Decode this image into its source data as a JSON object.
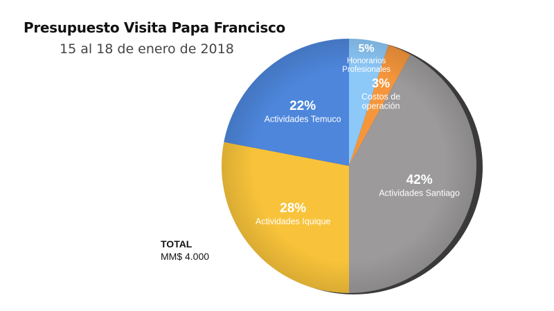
{
  "chart_data": {
    "type": "pie",
    "title": "Presupuesto Visita Papa Francisco",
    "subtitle": "15 al 18 de enero de 2018",
    "slices": [
      {
        "label": "Honorarios Profesionales",
        "label_lines": [
          "Honorarios",
          "Profesionales"
        ],
        "value": 5,
        "value_label": "5%",
        "color": "#8cc8f8"
      },
      {
        "label": "Costos de operación",
        "label_lines": [
          "Costos de",
          "operación"
        ],
        "value": 3,
        "value_label": "3%",
        "color": "#f5963c"
      },
      {
        "label": "Actividades Santiago",
        "label_lines": [
          "Actividades Santiago"
        ],
        "value": 42,
        "value_label": "42%",
        "color": "#9c9a9b"
      },
      {
        "label": "Actividades Iquique",
        "label_lines": [
          "Actividades Iquique"
        ],
        "value": 28,
        "value_label": "28%",
        "color": "#f8c33a"
      },
      {
        "label": "Actividades Temuco",
        "label_lines": [
          "Actividades Temuco"
        ],
        "value": 22,
        "value_label": "22%",
        "color": "#4d86db"
      }
    ]
  },
  "total": {
    "label": "TOTAL",
    "value": "MM$ 4.000"
  }
}
